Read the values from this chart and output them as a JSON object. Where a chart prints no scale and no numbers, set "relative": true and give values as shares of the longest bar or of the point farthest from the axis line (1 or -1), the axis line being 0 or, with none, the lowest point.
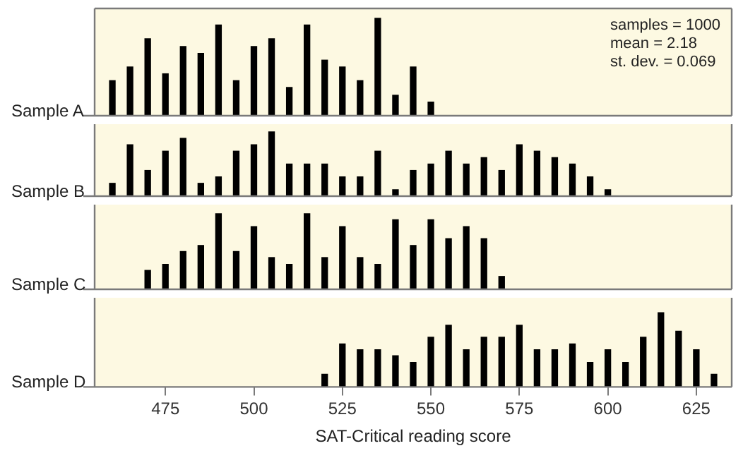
{
  "chart_data": [
    {
      "type": "bar",
      "ylabel": "Sample A",
      "relative": true,
      "color": "#000000",
      "x": [
        460,
        465,
        470,
        475,
        480,
        485,
        490,
        495,
        500,
        505,
        510,
        515,
        520,
        525,
        530,
        535,
        540,
        545,
        550
      ],
      "values": [
        0.36,
        0.5,
        0.79,
        0.43,
        0.71,
        0.64,
        0.93,
        0.36,
        0.71,
        0.79,
        0.29,
        0.93,
        0.57,
        0.5,
        0.36,
        1,
        0.21,
        0.5,
        0.14
      ],
      "xlim": [
        455,
        635
      ],
      "xticks": [
        475,
        500,
        525,
        550,
        575,
        600,
        625
      ],
      "tick_labels": false,
      "annotations": [
        "samples = 1000",
        "mean = 2.18",
        "st. dev. = 0.069"
      ]
    },
    {
      "type": "bar",
      "ylabel": "Sample B",
      "relative": true,
      "color": "#000000",
      "x": [
        460,
        465,
        470,
        475,
        480,
        485,
        490,
        495,
        500,
        505,
        510,
        515,
        520,
        525,
        530,
        535,
        540,
        545,
        550,
        555,
        560,
        565,
        570,
        575,
        580,
        585,
        590,
        595,
        600
      ],
      "values": [
        0.2,
        0.8,
        0.4,
        0.7,
        0.9,
        0.2,
        0.3,
        0.7,
        0.8,
        1,
        0.5,
        0.5,
        0.5,
        0.3,
        0.3,
        0.7,
        0.1,
        0.4,
        0.5,
        0.7,
        0.5,
        0.6,
        0.4,
        0.8,
        0.7,
        0.6,
        0.5,
        0.3,
        0.1
      ],
      "xlim": [
        455,
        635
      ],
      "xticks": [
        475,
        500,
        525,
        550,
        575,
        600,
        625
      ],
      "tick_labels": false
    },
    {
      "type": "bar",
      "ylabel": "Sample C",
      "relative": true,
      "color": "#000000",
      "x": [
        470,
        475,
        480,
        485,
        490,
        495,
        500,
        505,
        510,
        515,
        520,
        525,
        530,
        535,
        540,
        545,
        550,
        555,
        560,
        565,
        570
      ],
      "values": [
        0.25,
        0.33,
        0.5,
        0.58,
        1,
        0.5,
        0.83,
        0.42,
        0.33,
        1,
        0.42,
        0.83,
        0.42,
        0.33,
        0.92,
        0.58,
        0.92,
        0.67,
        0.83,
        0.67,
        0.17
      ],
      "xlim": [
        455,
        635
      ],
      "xticks": [
        475,
        500,
        525,
        550,
        575,
        600,
        625
      ],
      "tick_labels": false
    },
    {
      "type": "bar",
      "ylabel": "Sample D",
      "xlabel": "SAT-Critical reading score",
      "relative": true,
      "color": "#000000",
      "x": [
        520,
        525,
        530,
        535,
        540,
        545,
        550,
        555,
        560,
        565,
        570,
        575,
        580,
        585,
        590,
        595,
        600,
        605,
        610,
        615,
        620,
        625,
        630
      ],
      "values": [
        0.17,
        0.58,
        0.5,
        0.5,
        0.42,
        0.33,
        0.67,
        0.83,
        0.5,
        0.67,
        0.67,
        0.83,
        0.5,
        0.5,
        0.58,
        0.33,
        0.5,
        0.33,
        0.67,
        1,
        0.75,
        0.5,
        0.17
      ],
      "xlim": [
        455,
        635
      ],
      "xticks": [
        475,
        500,
        525,
        550,
        575,
        600,
        625
      ],
      "tick_labels": "x"
    }
  ]
}
